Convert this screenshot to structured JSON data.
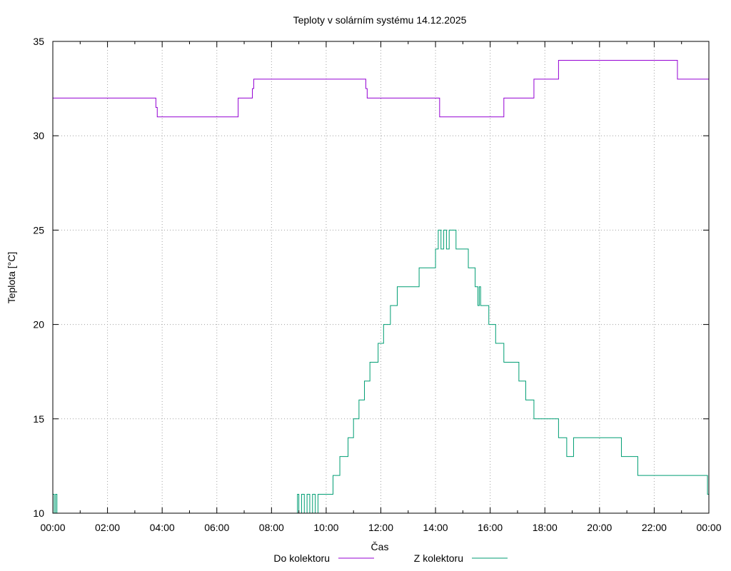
{
  "chart_data": {
    "type": "line",
    "title": "Teploty v solárním systému 14.12.2025",
    "xlabel": "Čas",
    "ylabel": "Teplota [°C]",
    "xlim": [
      0,
      24
    ],
    "ylim": [
      10,
      35
    ],
    "x_ticks": [
      0,
      2,
      4,
      6,
      8,
      10,
      12,
      14,
      16,
      18,
      20,
      22,
      24
    ],
    "x_tick_labels": [
      "00:00",
      "02:00",
      "04:00",
      "06:00",
      "08:00",
      "10:00",
      "12:00",
      "14:00",
      "16:00",
      "18:00",
      "20:00",
      "22:00",
      "00:00"
    ],
    "y_ticks": [
      10,
      15,
      20,
      25,
      30,
      35
    ],
    "y_tick_labels": [
      "10",
      "15",
      "20",
      "25",
      "30",
      "35"
    ],
    "grid": true,
    "legend": "bottom-center",
    "series": [
      {
        "name": "Do kolektoru",
        "color": "#9400d3",
        "x": [
          0,
          3.77,
          3.77,
          3.82,
          3.82,
          6.78,
          6.78,
          7.3,
          7.3,
          7.35,
          7.35,
          11.45,
          11.45,
          11.5,
          11.5,
          11.55,
          11.55,
          14.15,
          14.15,
          16.5,
          16.5,
          17.6,
          17.6,
          18.5,
          18.5,
          22.85,
          22.85,
          24
        ],
        "y": [
          32,
          32,
          31.5,
          31.5,
          31,
          31,
          32,
          32,
          32.5,
          32.5,
          33,
          33,
          32.5,
          32.5,
          32,
          32,
          32,
          32,
          31,
          31,
          32,
          32,
          33,
          33,
          34,
          34,
          33,
          33
        ]
      },
      {
        "name": "Z kolektoru",
        "color": "#009e73",
        "x": [
          0,
          0.05,
          0.05,
          0.1,
          0.1,
          0.15,
          0.15,
          0.2,
          0.2,
          8.95,
          8.95,
          9.0,
          9.0,
          9.1,
          9.1,
          9.2,
          9.2,
          9.3,
          9.3,
          9.4,
          9.4,
          9.5,
          9.5,
          9.6,
          9.6,
          9.7,
          9.7,
          10.25,
          10.25,
          10.5,
          10.5,
          10.8,
          10.8,
          11.0,
          11.0,
          11.2,
          11.2,
          11.4,
          11.4,
          11.6,
          11.6,
          11.9,
          11.9,
          12.1,
          12.1,
          12.35,
          12.35,
          12.6,
          12.6,
          13.4,
          13.4,
          14.0,
          14.0,
          14.1,
          14.1,
          14.2,
          14.2,
          14.3,
          14.3,
          14.4,
          14.4,
          14.5,
          14.5,
          14.75,
          14.75,
          15.2,
          15.2,
          15.45,
          15.45,
          15.55,
          15.55,
          15.6,
          15.6,
          15.65,
          15.65,
          15.95,
          15.95,
          16.2,
          16.2,
          16.5,
          16.5,
          17.05,
          17.05,
          17.3,
          17.3,
          17.6,
          17.6,
          18.5,
          18.5,
          18.8,
          18.8,
          19.05,
          19.05,
          20.8,
          20.8,
          21.3,
          21.3,
          21.4,
          21.4,
          23.9,
          23.9,
          23.95,
          23.95,
          24
        ],
        "y": [
          11,
          11,
          10,
          10,
          11,
          11,
          10,
          10,
          10,
          10,
          11,
          11,
          10,
          10,
          11,
          11,
          10,
          10,
          11,
          11,
          10,
          10,
          11,
          11,
          10,
          10,
          11,
          11,
          12,
          12,
          13,
          13,
          14,
          14,
          15,
          15,
          16,
          16,
          17,
          17,
          18,
          18,
          19,
          19,
          20,
          20,
          21,
          21,
          22,
          22,
          23,
          23,
          24,
          24,
          25,
          25,
          24,
          24,
          25,
          25,
          24,
          24,
          25,
          25,
          24,
          24,
          23,
          23,
          22,
          22,
          21,
          21,
          22,
          22,
          21,
          21,
          20,
          20,
          19,
          19,
          18,
          18,
          17,
          17,
          16,
          16,
          15,
          15,
          14,
          14,
          13,
          13,
          14,
          14,
          13,
          13,
          13,
          13,
          12,
          12,
          12,
          12,
          11,
          11
        ]
      }
    ]
  }
}
